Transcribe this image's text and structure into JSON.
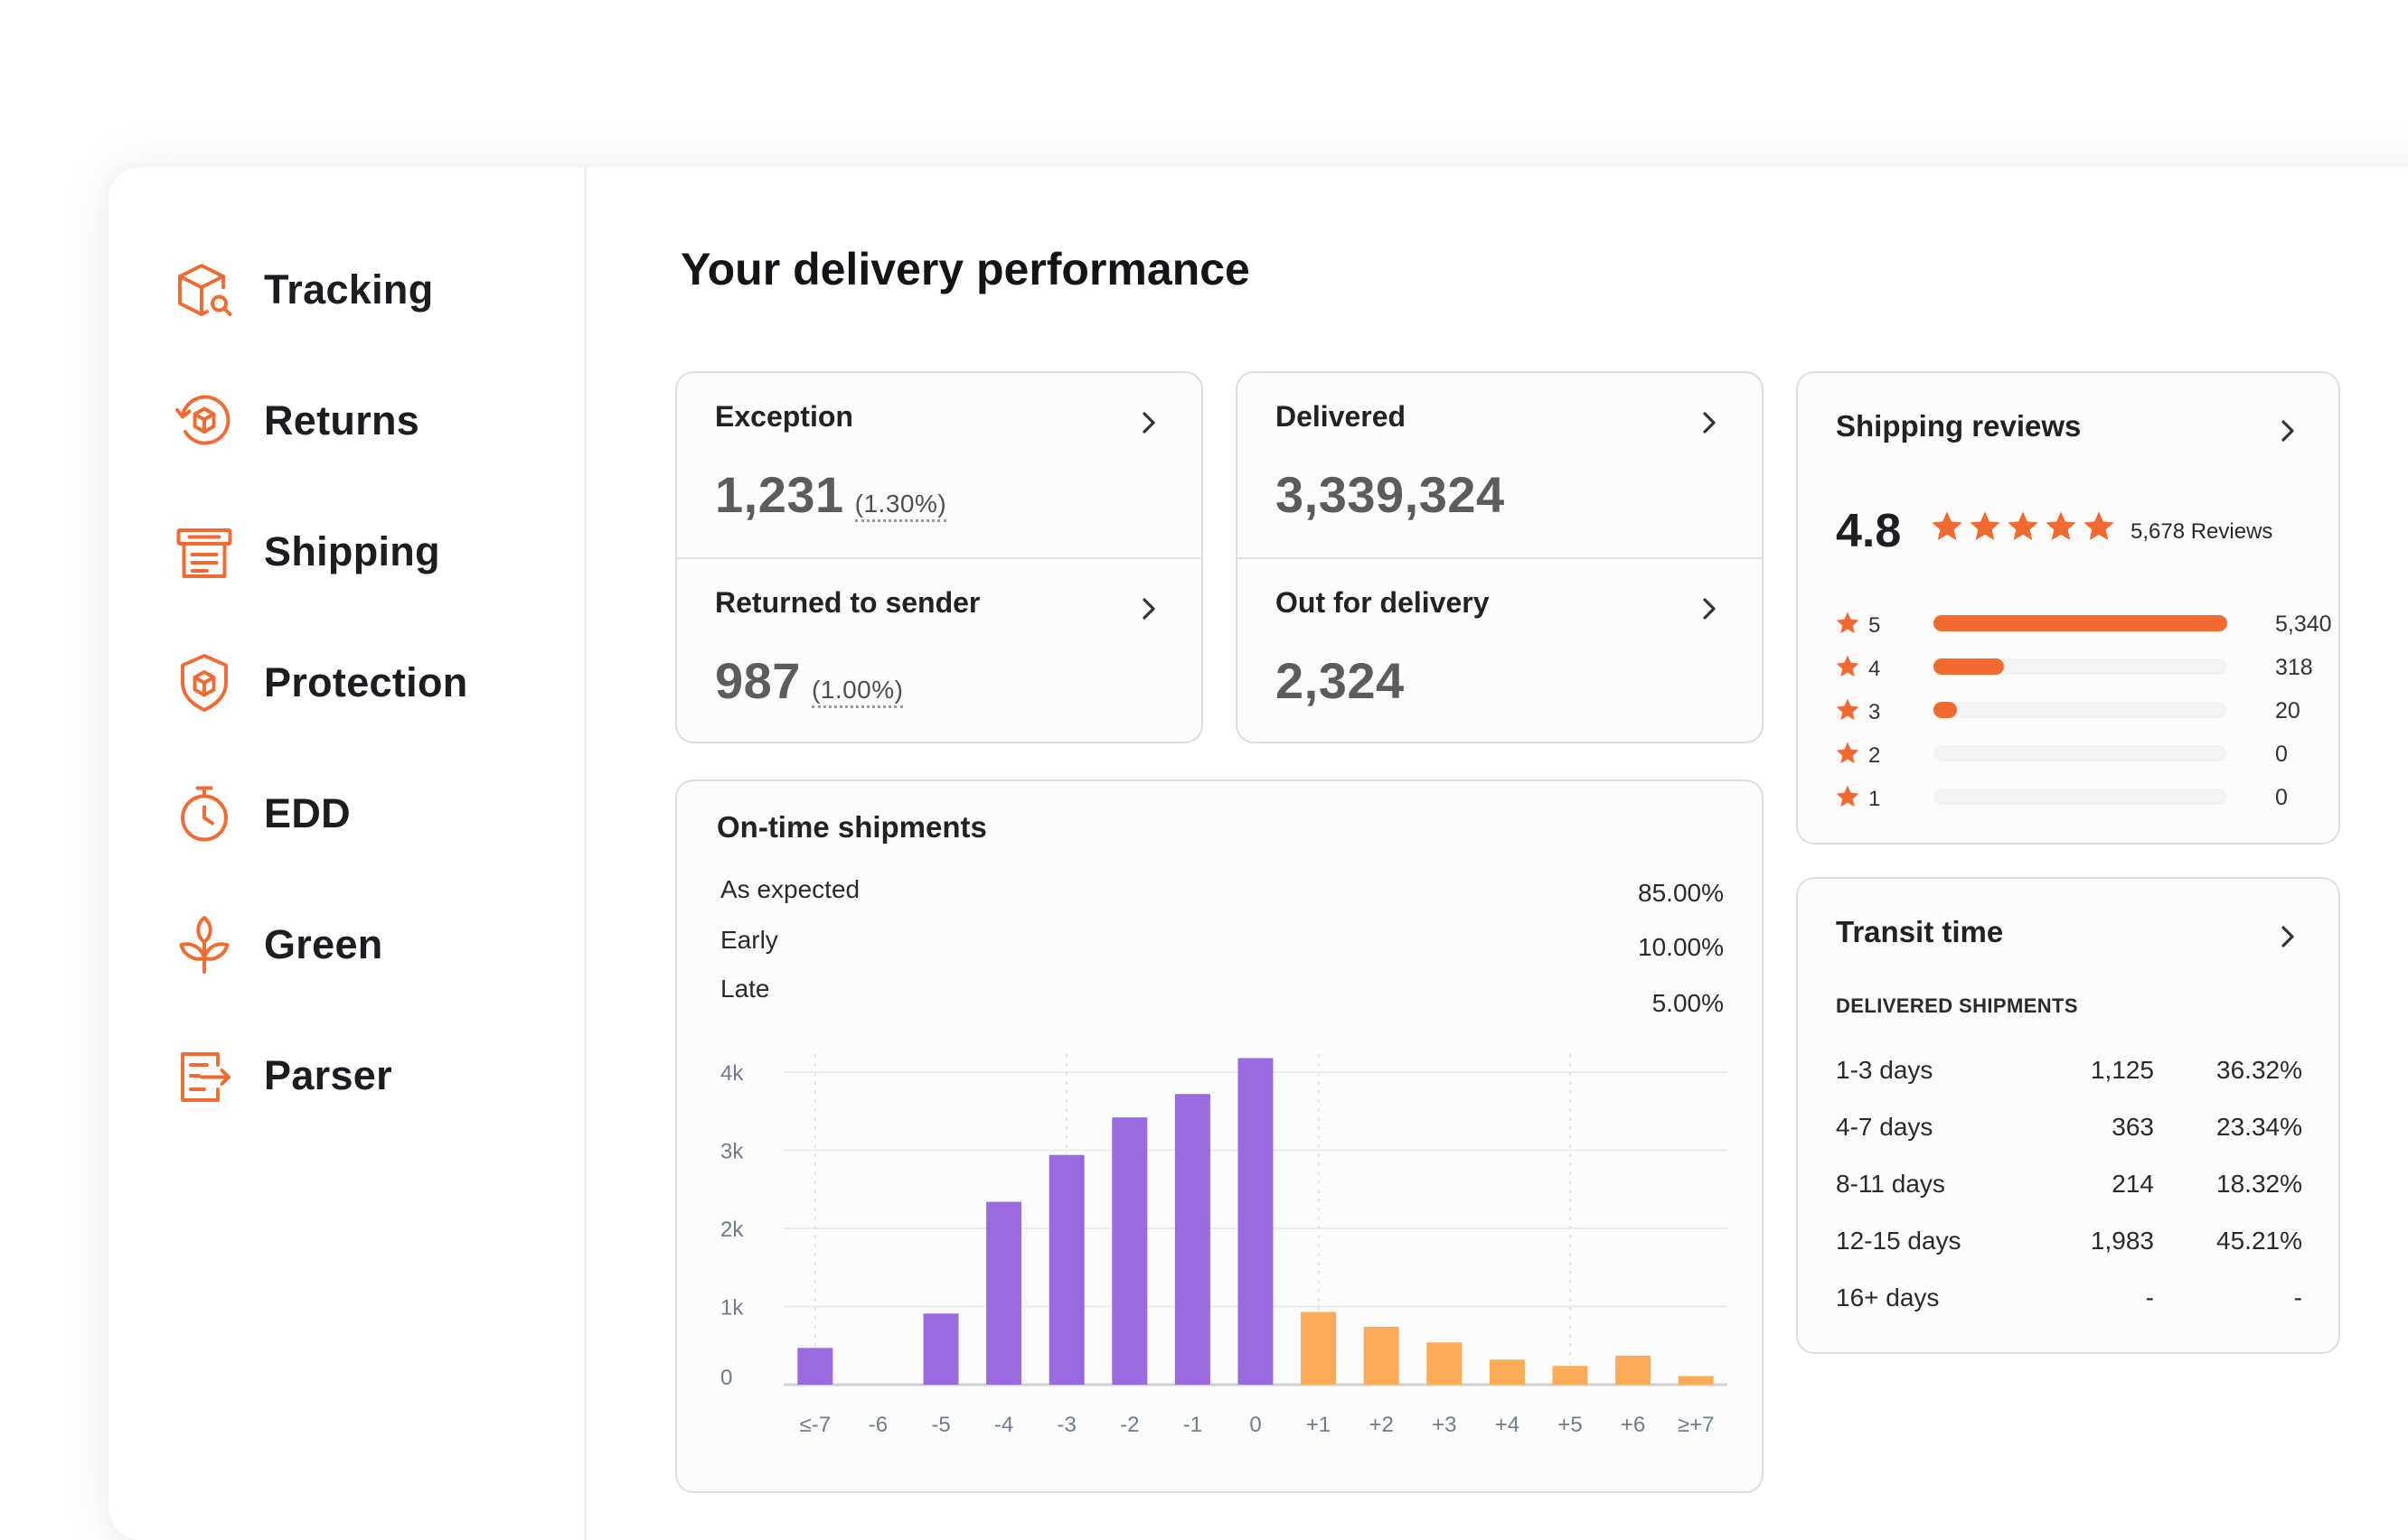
{
  "sidebar": {
    "items": [
      {
        "label": "Tracking",
        "icon": "box-search-icon"
      },
      {
        "label": "Returns",
        "icon": "return-box-icon"
      },
      {
        "label": "Shipping",
        "icon": "shipping-label-icon"
      },
      {
        "label": "Protection",
        "icon": "shield-box-icon"
      },
      {
        "label": "EDD",
        "icon": "stopwatch-icon"
      },
      {
        "label": "Green",
        "icon": "sprout-icon"
      },
      {
        "label": "Parser",
        "icon": "document-arrow-icon"
      }
    ]
  },
  "main": {
    "title": "Your delivery performance",
    "stats": {
      "exception": {
        "label": "Exception",
        "value": "1,231",
        "pct": "(1.30%)"
      },
      "returned": {
        "label": "Returned to sender",
        "value": "987",
        "pct": "(1.00%)"
      },
      "delivered": {
        "label": "Delivered",
        "value": "3,339,324"
      },
      "out_for_delivery": {
        "label": "Out for delivery",
        "value": "2,324"
      }
    },
    "ontime": {
      "title": "On-time shipments",
      "legend": [
        {
          "label": "As expected",
          "value": "85.00%"
        },
        {
          "label": "Early",
          "value": "10.00%"
        },
        {
          "label": "Late",
          "value": "5.00%"
        }
      ]
    },
    "reviews": {
      "title": "Shipping reviews",
      "rating": "4.8",
      "count_label": "5,678 Reviews",
      "distribution": [
        {
          "stars": "5",
          "count": "5,340",
          "fraction": 1.0
        },
        {
          "stars": "4",
          "count": "318",
          "fraction": 0.24
        },
        {
          "stars": "3",
          "count": "20",
          "fraction": 0.08
        },
        {
          "stars": "2",
          "count": "0",
          "fraction": 0
        },
        {
          "stars": "1",
          "count": "0",
          "fraction": 0
        }
      ]
    },
    "transit": {
      "title": "Transit time",
      "subtitle": "DELIVERED SHIPMENTS",
      "rows": [
        {
          "range": "1-3 days",
          "count": "1,125",
          "pct": "36.32%"
        },
        {
          "range": "4-7 days",
          "count": "363",
          "pct": "23.34%"
        },
        {
          "range": "8-11 days",
          "count": "214",
          "pct": "18.32%"
        },
        {
          "range": "12-15 days",
          "count": "1,983",
          "pct": "45.21%"
        },
        {
          "range": "16+ days",
          "count": "-",
          "pct": "-"
        }
      ]
    }
  },
  "colors": {
    "accent": "#f26a30",
    "early": "#9b6ade",
    "late": "#fbab58",
    "star": "#f26a30"
  },
  "chart_data": {
    "type": "bar",
    "categories": [
      "≤-7",
      "-6",
      "-5",
      "-4",
      "-3",
      "-2",
      "-1",
      "0",
      "+1",
      "+2",
      "+3",
      "+4",
      "+5",
      "+6",
      "≥+7"
    ],
    "values": [
      470,
      0,
      910,
      2340,
      2940,
      3420,
      3720,
      4180,
      930,
      740,
      540,
      320,
      240,
      370,
      110
    ],
    "yticks": [
      "0",
      "1k",
      "2k",
      "3k",
      "4k"
    ],
    "ylim": [
      0,
      4000
    ],
    "grid": true
  }
}
